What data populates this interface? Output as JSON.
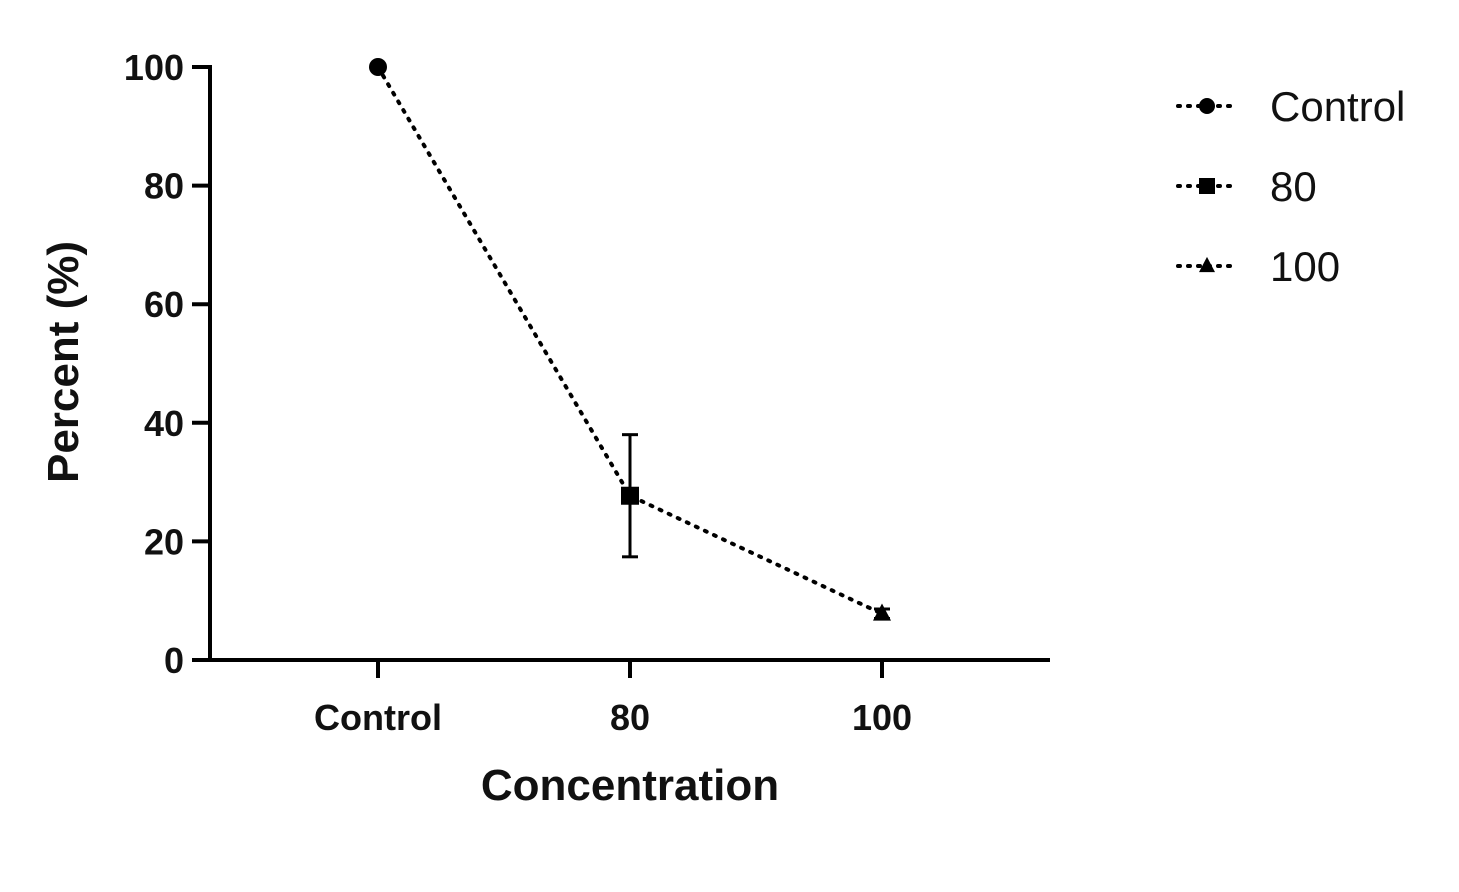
{
  "chart_data": {
    "type": "line",
    "xlabel": "Concentration",
    "ylabel": "Percent (%)",
    "categories": [
      "Control",
      "80",
      "100"
    ],
    "ylim": [
      0,
      100
    ],
    "yticks": [
      0,
      20,
      40,
      60,
      80,
      100
    ],
    "grid": false,
    "legend_position": "top-right",
    "line_style": "dotted",
    "color": "#000000",
    "series": [
      {
        "name": "Control",
        "marker": "circle",
        "category": "Control",
        "value": 100,
        "error": 0
      },
      {
        "name": "80",
        "marker": "square",
        "category": "80",
        "value": 27.7,
        "error": 10.3
      },
      {
        "name": "100",
        "marker": "triangle",
        "category": "100",
        "value": 7.8,
        "error": 0.8
      }
    ]
  }
}
